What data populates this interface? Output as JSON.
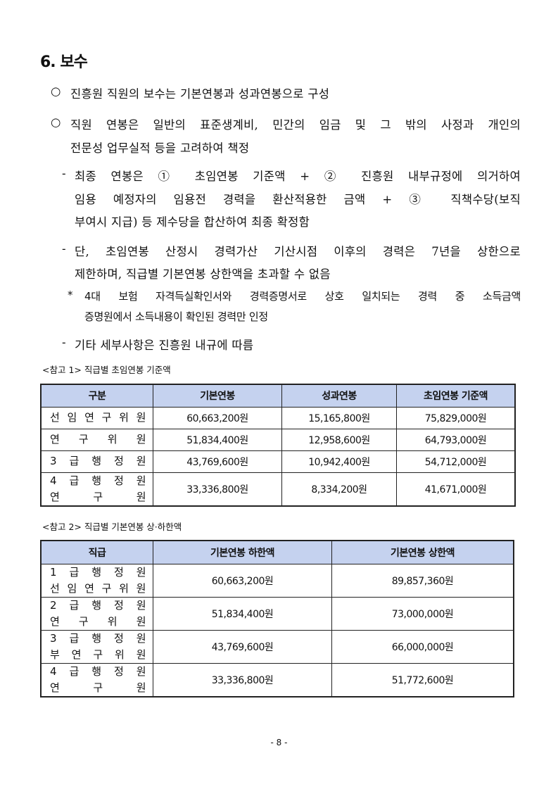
{
  "section_title": "6. 보수",
  "bullets": [
    {
      "marker": "○",
      "lines": [
        "진흥원 직원의 보수는 기본연봉과 성과연봉으로 구성"
      ]
    },
    {
      "marker": "○",
      "lines": [
        "직원 연봉은 일반의 표준생계비, 민간의 임금 및 그 밖의 사정과 개인의",
        "전문성 업무실적 등을 고려하여 책정"
      ]
    }
  ],
  "sub_items": [
    {
      "marker": "-",
      "lines": [
        "최종 연봉은 ① 초임연봉 기준액 + ② 진흥원 내부규정에 의거하여",
        "임용 예정자의 임용전 경력을 환산적용한 금액 + ③ 직책수당(보직",
        "부여시 지급) 등 제수당을 합산하여 최종 확정함"
      ]
    },
    {
      "marker": "-",
      "lines": [
        "단, 초임연봉 산정시 경력가산 기산시점 이후의 경력은 7년을 상한으로",
        "제한하며, 직급별 기본연봉 상한액을 초과할 수 없음"
      ]
    },
    {
      "marker": "*",
      "lines": [
        "4대 보험 자격득실확인서와 경력증명서로 상호 일치되는 경력 중 소득금액",
        "증명원에서 소득내용이 확인된 경력만 인정"
      ]
    },
    {
      "marker": "-",
      "lines": [
        "기타 세부사항은 진흥원 내규에 따름"
      ]
    }
  ],
  "table1": {
    "caption": "<참고 1> 직급별 초임연봉 기준액",
    "headers": [
      "구분",
      "기본연봉",
      "성과연봉",
      "초임연봉 기준액"
    ],
    "rows": [
      {
        "label": [
          "선 임 연 구 위 원"
        ],
        "values": [
          "60,663,200원",
          "15,165,800원",
          "75,829,000원"
        ]
      },
      {
        "label": [
          "연 구 위 원"
        ],
        "values": [
          "51,834,400원",
          "12,958,600원",
          "64,793,000원"
        ]
      },
      {
        "label": [
          "3 급 행 정 원"
        ],
        "values": [
          "43,769,600원",
          "10,942,400원",
          "54,712,000원"
        ]
      },
      {
        "label": [
          "4 급 행 정 원",
          "연 구 원"
        ],
        "values": [
          "33,336,800원",
          "8,334,200원",
          "41,671,000원"
        ]
      }
    ]
  },
  "table2": {
    "caption": "<참고 2> 직급별 기본연봉 상·하한액",
    "headers": [
      "직급",
      "기본연봉 하한액",
      "기본연봉 상한액"
    ],
    "rows": [
      {
        "label": [
          "1 급 행 정 원",
          "선 임 연 구 위 원"
        ],
        "values": [
          "60,663,200원",
          "89,857,360원"
        ]
      },
      {
        "label": [
          "2 급 행 정 원",
          "연 구 위 원"
        ],
        "values": [
          "51,834,400원",
          "73,000,000원"
        ]
      },
      {
        "label": [
          "3 급 행 정 원",
          "부 연 구 위 원"
        ],
        "values": [
          "43,769,600원",
          "66,000,000원"
        ]
      },
      {
        "label": [
          "4 급 행 정 원",
          "연 구 원"
        ],
        "values": [
          "33,336,800원",
          "51,772,600원"
        ]
      }
    ]
  },
  "page_number": "- 8 -",
  "colors": {
    "table_header_bg": "#c5d2ef"
  }
}
